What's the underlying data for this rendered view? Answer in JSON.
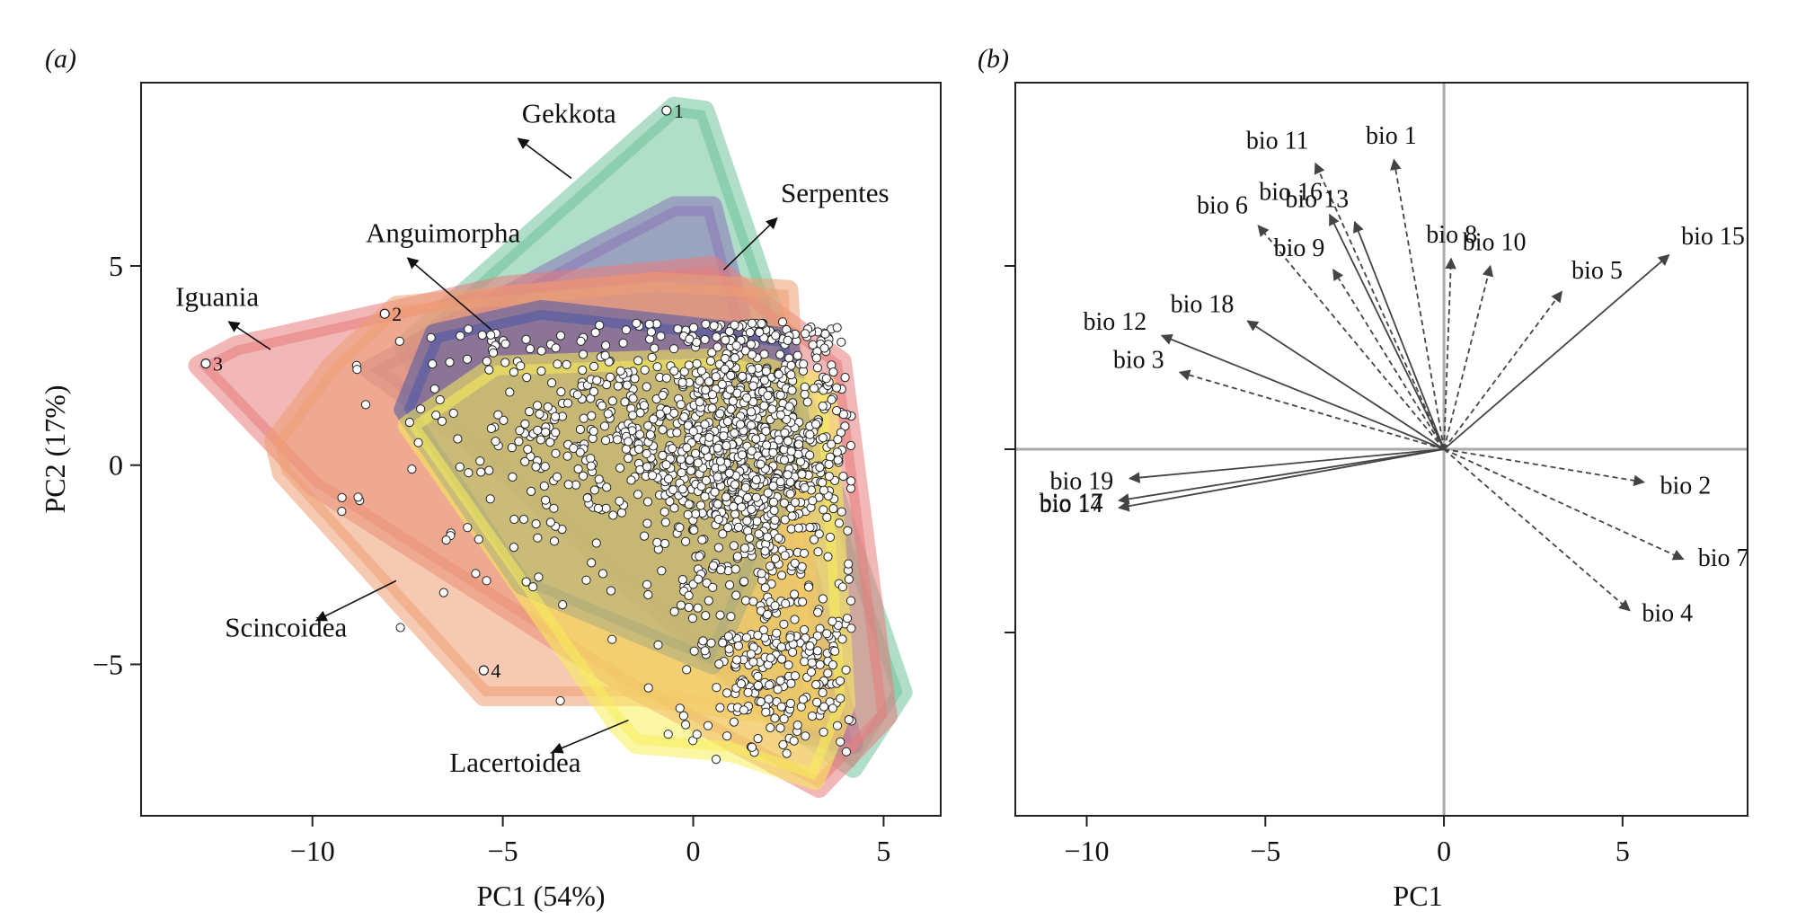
{
  "figure": {
    "panel_a_label": "(a)",
    "panel_b_label": "(b)"
  },
  "chart_data": [
    {
      "type": "scatter",
      "panel": "(a)",
      "xlabel": "PC1 (54%)",
      "ylabel": "PC2 (17%)",
      "xlim": [
        -14.5,
        6.5
      ],
      "ylim": [
        -8.8,
        9.6
      ],
      "xticks": [
        -10,
        -5,
        0,
        5
      ],
      "xtick_labels": [
        "−10",
        "−5",
        "0",
        "5"
      ],
      "yticks": [
        -5,
        0,
        5
      ],
      "ytick_labels": [
        "−5",
        "0",
        "5"
      ],
      "groups": [
        {
          "name": "Gekkota",
          "color": "#6fc29a",
          "hull": [
            [
              -7.6,
              3.0
            ],
            [
              -0.5,
              9.0
            ],
            [
              0.3,
              8.9
            ],
            [
              5.5,
              -5.7
            ],
            [
              4.2,
              -7.6
            ],
            [
              2.5,
              -6.5
            ],
            [
              -6.5,
              1.2
            ]
          ]
        },
        {
          "name": "Serpentes",
          "color": "#8a74b8",
          "hull": [
            [
              -8.5,
              2.4
            ],
            [
              -2.5,
              5.5
            ],
            [
              -0.5,
              6.5
            ],
            [
              0.5,
              6.5
            ],
            [
              4.2,
              -7.0
            ],
            [
              2.6,
              -6.7
            ],
            [
              -6.0,
              0.7
            ]
          ]
        },
        {
          "name": "Iguania",
          "color": "#e77c7c",
          "hull": [
            [
              -13.0,
              2.5
            ],
            [
              -12.0,
              3.0
            ],
            [
              -5.0,
              4.5
            ],
            [
              0.5,
              5.0
            ],
            [
              3.9,
              2.6
            ],
            [
              5.1,
              -6.3
            ],
            [
              3.3,
              -8.1
            ],
            [
              -1.8,
              -5.5
            ],
            [
              -10.0,
              -0.5
            ]
          ]
        },
        {
          "name": "Scincoidea",
          "color": "#ef9f73",
          "hull": [
            [
              -11.0,
              0.6
            ],
            [
              -9.5,
              2.5
            ],
            [
              -7.8,
              4.0
            ],
            [
              -1.0,
              4.6
            ],
            [
              2.5,
              4.4
            ],
            [
              3.2,
              -6.4
            ],
            [
              -1.5,
              -5.8
            ],
            [
              -5.5,
              -5.8
            ],
            [
              -10.8,
              -0.2
            ]
          ]
        },
        {
          "name": "Anguimorpha",
          "color": "#4a57a8",
          "hull": [
            [
              -7.6,
              1.4
            ],
            [
              -6.8,
              3.3
            ],
            [
              -4.0,
              3.9
            ],
            [
              2.5,
              3.2
            ],
            [
              2.9,
              0.5
            ],
            [
              0.5,
              -5.0
            ],
            [
              -4.5,
              -3.0
            ]
          ]
        },
        {
          "name": "Lacertoidea",
          "color": "#f7ef5a",
          "hull": [
            [
              -7.5,
              1.0
            ],
            [
              -5.2,
              2.5
            ],
            [
              1.0,
              2.7
            ],
            [
              3.5,
              2.0
            ],
            [
              4.0,
              -6.0
            ],
            [
              3.2,
              -7.9
            ],
            [
              1.0,
              -7.2
            ],
            [
              -1.5,
              -7.0
            ],
            [
              -2.0,
              -6.5
            ]
          ]
        }
      ],
      "extreme_points": [
        {
          "label": "1",
          "x": -0.7,
          "y": 8.9
        },
        {
          "label": "2",
          "x": -8.1,
          "y": 3.8
        },
        {
          "label": "3",
          "x": -12.8,
          "y": 2.55
        },
        {
          "label": "4",
          "x": -5.5,
          "y": -5.15
        }
      ],
      "point_cloud": {
        "count": 1500,
        "center": [
          1.3,
          -0.5
        ],
        "note": "dense cloud of ~1500 white species points centred around PC1 0–3, PC2 −7 to 3.5"
      },
      "annotations": [
        {
          "text": "Gekkota",
          "x": -4.5,
          "y": 8.6,
          "arrow_from": [
            -3.2,
            7.2
          ],
          "arrow_to": [
            -4.6,
            8.2
          ]
        },
        {
          "text": "Serpentes",
          "x": 2.3,
          "y": 6.6,
          "arrow_from": [
            0.8,
            4.9
          ],
          "arrow_to": [
            2.2,
            6.2
          ]
        },
        {
          "text": "Anguimorpha",
          "x": -8.6,
          "y": 5.6,
          "arrow_from": [
            -5.3,
            3.4
          ],
          "arrow_to": [
            -7.5,
            5.2
          ]
        },
        {
          "text": "Iguania",
          "x": -13.6,
          "y": 4.0,
          "arrow_from": [
            -11.1,
            2.9
          ],
          "arrow_to": [
            -12.2,
            3.6
          ]
        },
        {
          "text": "Scincoidea",
          "x": -12.3,
          "y": -4.3,
          "arrow_from": [
            -7.8,
            -2.9
          ],
          "arrow_to": [
            -9.9,
            -3.9
          ]
        },
        {
          "text": "Lacertoidea",
          "x": -6.4,
          "y": -7.7,
          "arrow_from": [
            -1.7,
            -6.4
          ],
          "arrow_to": [
            -3.7,
            -7.2
          ]
        }
      ]
    },
    {
      "type": "biplot",
      "panel": "(b)",
      "xlabel": "PC1",
      "ylabel": "",
      "xlim": [
        -12,
        8.5
      ],
      "ylim": [
        -10,
        10
      ],
      "xticks": [
        -10,
        -5,
        0,
        5
      ],
      "xtick_labels": [
        "−10",
        "−5",
        "0",
        "5"
      ],
      "yticks": [
        -5,
        0,
        5
      ],
      "ytick_labels": [
        "",
        "",
        ""
      ],
      "reference_lines": {
        "x": 0,
        "y": 0
      },
      "vectors": [
        {
          "name": "bio 1",
          "x": -1.4,
          "y": 7.9,
          "style": "dashed"
        },
        {
          "name": "bio 2",
          "x": 5.6,
          "y": -0.9,
          "style": "dashed"
        },
        {
          "name": "bio 3",
          "x": -7.4,
          "y": 2.1,
          "style": "dashed"
        },
        {
          "name": "bio 4",
          "x": 5.2,
          "y": -4.4,
          "style": "dashed"
        },
        {
          "name": "bio 5",
          "x": 3.3,
          "y": 4.3,
          "style": "dashed"
        },
        {
          "name": "bio 6",
          "x": -5.2,
          "y": 6.1,
          "style": "dashed"
        },
        {
          "name": "bio 7",
          "x": 6.7,
          "y": -3.0,
          "style": "dashed"
        },
        {
          "name": "bio 8",
          "x": 0.2,
          "y": 5.2,
          "style": "dashed"
        },
        {
          "name": "bio 9",
          "x": -3.1,
          "y": 4.9,
          "style": "dashed"
        },
        {
          "name": "bio 10",
          "x": 1.3,
          "y": 5.0,
          "style": "dashed"
        },
        {
          "name": "bio 11",
          "x": -3.6,
          "y": 7.8,
          "style": "dashed"
        },
        {
          "name": "bio 12",
          "x": -7.9,
          "y": 3.1,
          "style": "solid"
        },
        {
          "name": "bio 13",
          "x": -2.5,
          "y": 6.2,
          "style": "solid"
        },
        {
          "name": "bio 14",
          "x": -9.1,
          "y": -1.4,
          "style": "solid"
        },
        {
          "name": "bio 15",
          "x": 6.3,
          "y": 5.3,
          "style": "solid"
        },
        {
          "name": "bio 16",
          "x": -3.2,
          "y": 6.4,
          "style": "solid"
        },
        {
          "name": "bio 17",
          "x": -9.1,
          "y": -1.6,
          "style": "solid"
        },
        {
          "name": "bio 18",
          "x": -5.5,
          "y": 3.5,
          "style": "solid"
        },
        {
          "name": "bio 19",
          "x": -8.8,
          "y": -0.8,
          "style": "solid"
        }
      ]
    }
  ]
}
